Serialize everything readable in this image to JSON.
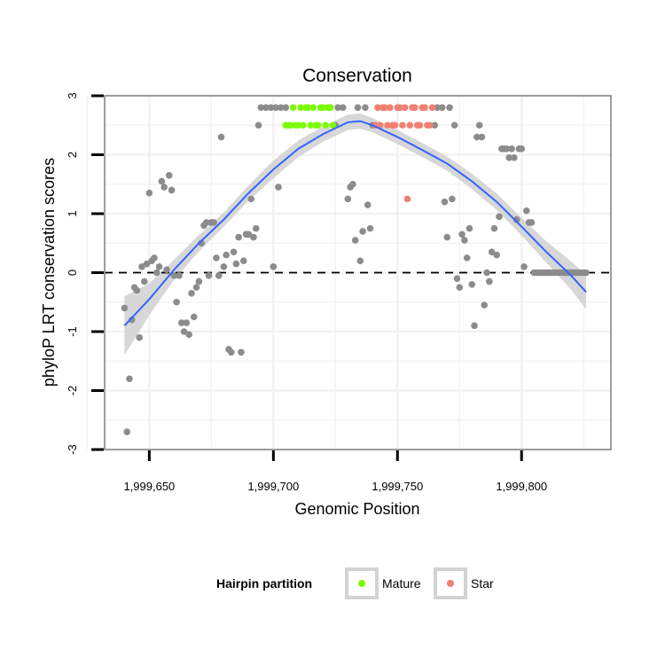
{
  "colors": {
    "background": "#ffffff",
    "panel_border": "#7f7f7f",
    "grid": "#f2f2f2",
    "other_points": "#8c8c8c",
    "mature": "#7cfc00",
    "star": "#f08070",
    "smooth_line": "#3366ff",
    "ci_band": "#d3d3d3",
    "zero_line": "#000000"
  },
  "chart_data": {
    "type": "scatter",
    "title": "Conservation",
    "xlabel": "Genomic Position",
    "ylabel": "phyloP LRT conservation scores",
    "xlim": [
      1999632,
      1999836
    ],
    "ylim": [
      -3,
      3
    ],
    "x_ticks": [
      1999650,
      1999700,
      1999750,
      1999800
    ],
    "x_tick_labels": [
      "1,999,650",
      "1,999,700",
      "1,999,750",
      "1,999,800"
    ],
    "y_ticks": [
      -3,
      -2,
      -1,
      0,
      1,
      2,
      3
    ],
    "y_tick_labels": [
      "-3",
      "-2",
      "-1",
      "0",
      "1",
      "2",
      "3"
    ],
    "grid": true,
    "reference_line": {
      "y": 0,
      "style": "dashed"
    },
    "legend": {
      "title": "Hairpin partition",
      "position": "bottom",
      "entries": [
        {
          "label": "Mature",
          "color": "#7cfc00"
        },
        {
          "label": "Star",
          "color": "#f08070"
        }
      ]
    },
    "series": [
      {
        "color": "#8c8c8c",
        "points": [
          [
            1999640,
            -0.6
          ],
          [
            1999641,
            -2.7
          ],
          [
            1999642,
            -1.8
          ],
          [
            1999643,
            -0.8
          ],
          [
            1999644,
            -0.25
          ],
          [
            1999645,
            -0.3
          ],
          [
            1999646,
            -1.1
          ],
          [
            1999647,
            0.1
          ],
          [
            1999648,
            -0.15
          ],
          [
            1999649,
            0.15
          ],
          [
            1999650,
            1.35
          ],
          [
            1999651,
            0.2
          ],
          [
            1999652,
            0.25
          ],
          [
            1999653,
            0.0
          ],
          [
            1999654,
            0.1
          ],
          [
            1999655,
            1.55
          ],
          [
            1999656,
            1.45
          ],
          [
            1999657,
            0.05
          ],
          [
            1999658,
            1.65
          ],
          [
            1999659,
            1.4
          ],
          [
            1999660,
            -0.05
          ],
          [
            1999661,
            -0.5
          ],
          [
            1999662,
            -0.05
          ],
          [
            1999663,
            -0.85
          ],
          [
            1999664,
            -1.0
          ],
          [
            1999665,
            -0.85
          ],
          [
            1999666,
            -1.05
          ],
          [
            1999667,
            -0.35
          ],
          [
            1999668,
            -0.75
          ],
          [
            1999669,
            -0.25
          ],
          [
            1999670,
            -0.15
          ],
          [
            1999671,
            0.5
          ],
          [
            1999672,
            0.8
          ],
          [
            1999673,
            0.85
          ],
          [
            1999674,
            -0.05
          ],
          [
            1999675,
            0.85
          ],
          [
            1999676,
            0.85
          ],
          [
            1999677,
            0.25
          ],
          [
            1999678,
            -0.05
          ],
          [
            1999679,
            2.3
          ],
          [
            1999680,
            0.1
          ],
          [
            1999681,
            0.3
          ],
          [
            1999682,
            -1.3
          ],
          [
            1999683,
            -1.35
          ],
          [
            1999684,
            0.35
          ],
          [
            1999685,
            0.15
          ],
          [
            1999686,
            0.6
          ],
          [
            1999687,
            -1.35
          ],
          [
            1999688,
            0.2
          ],
          [
            1999689,
            0.65
          ],
          [
            1999690,
            0.65
          ],
          [
            1999691,
            1.25
          ],
          [
            1999692,
            0.6
          ],
          [
            1999693,
            0.75
          ],
          [
            1999694,
            2.5
          ],
          [
            1999695,
            2.8
          ],
          [
            1999697,
            2.8
          ],
          [
            1999699,
            2.8
          ],
          [
            1999700,
            0.1
          ],
          [
            1999701,
            2.8
          ],
          [
            1999702,
            1.45
          ],
          [
            1999703,
            2.8
          ],
          [
            1999705,
            2.8
          ],
          [
            1999725,
            2.5
          ],
          [
            1999726,
            2.8
          ],
          [
            1999728,
            2.8
          ],
          [
            1999730,
            1.25
          ],
          [
            1999731,
            1.45
          ],
          [
            1999732,
            1.5
          ],
          [
            1999733,
            0.55
          ],
          [
            1999734,
            2.8
          ],
          [
            1999735,
            0.2
          ],
          [
            1999736,
            0.7
          ],
          [
            1999737,
            2.8
          ],
          [
            1999738,
            1.15
          ],
          [
            1999739,
            0.75
          ],
          [
            1999740,
            2.5
          ],
          [
            1999765,
            2.5
          ],
          [
            1999766,
            2.8
          ],
          [
            1999768,
            2.8
          ],
          [
            1999769,
            1.2
          ],
          [
            1999770,
            0.6
          ],
          [
            1999771,
            2.8
          ],
          [
            1999772,
            1.25
          ],
          [
            1999773,
            2.5
          ],
          [
            1999774,
            -0.1
          ],
          [
            1999775,
            -0.25
          ],
          [
            1999776,
            0.65
          ],
          [
            1999777,
            0.55
          ],
          [
            1999778,
            0.25
          ],
          [
            1999779,
            0.75
          ],
          [
            1999780,
            -0.2
          ],
          [
            1999781,
            -0.9
          ],
          [
            1999782,
            2.3
          ],
          [
            1999783,
            2.5
          ],
          [
            1999784,
            2.3
          ],
          [
            1999785,
            -0.55
          ],
          [
            1999786,
            0.0
          ],
          [
            1999787,
            -0.15
          ],
          [
            1999788,
            0.35
          ],
          [
            1999789,
            0.75
          ],
          [
            1999790,
            0.3
          ],
          [
            1999791,
            0.95
          ],
          [
            1999792,
            2.1
          ],
          [
            1999793,
            2.1
          ],
          [
            1999794,
            2.1
          ],
          [
            1999795,
            1.95
          ],
          [
            1999796,
            2.1
          ],
          [
            1999797,
            1.95
          ],
          [
            1999798,
            0.9
          ],
          [
            1999799,
            2.1
          ],
          [
            1999800,
            2.1
          ],
          [
            1999801,
            0.1
          ],
          [
            1999802,
            1.05
          ],
          [
            1999803,
            0.85
          ],
          [
            1999804,
            0.85
          ],
          [
            1999805,
            0.0
          ],
          [
            1999806,
            0.0
          ],
          [
            1999807,
            0.0
          ],
          [
            1999808,
            0.0
          ],
          [
            1999809,
            0.0
          ],
          [
            1999810,
            0.0
          ],
          [
            1999811,
            0.0
          ],
          [
            1999812,
            0.0
          ],
          [
            1999813,
            0.0
          ],
          [
            1999814,
            0.0
          ],
          [
            1999815,
            0.0
          ],
          [
            1999816,
            0.0
          ],
          [
            1999817,
            0.0
          ],
          [
            1999818,
            0.0
          ],
          [
            1999819,
            0.0
          ],
          [
            1999820,
            0.0
          ],
          [
            1999821,
            0.0
          ],
          [
            1999822,
            0.0
          ],
          [
            1999823,
            0.0
          ],
          [
            1999824,
            0.0
          ],
          [
            1999825,
            0.0
          ],
          [
            1999826,
            0.0
          ]
        ]
      },
      {
        "name": "Mature",
        "color": "#7cfc00",
        "points": [
          [
            1999705,
            2.5
          ],
          [
            1999706,
            2.5
          ],
          [
            1999707,
            2.5
          ],
          [
            1999708,
            2.8
          ],
          [
            1999709,
            2.5
          ],
          [
            1999710,
            2.5
          ],
          [
            1999711,
            2.8
          ],
          [
            1999712,
            2.5
          ],
          [
            1999713,
            2.8
          ],
          [
            1999714,
            2.8
          ],
          [
            1999715,
            2.5
          ],
          [
            1999716,
            2.8
          ],
          [
            1999717,
            2.5
          ],
          [
            1999718,
            2.5
          ],
          [
            1999719,
            2.8
          ],
          [
            1999720,
            2.8
          ],
          [
            1999721,
            2.5
          ],
          [
            1999722,
            2.8
          ],
          [
            1999723,
            2.8
          ],
          [
            1999724,
            2.5
          ]
        ]
      },
      {
        "name": "Star",
        "color": "#f08070",
        "points": [
          [
            1999741,
            2.5
          ],
          [
            1999742,
            2.8
          ],
          [
            1999743,
            2.5
          ],
          [
            1999744,
            2.8
          ],
          [
            1999745,
            2.8
          ],
          [
            1999746,
            2.5
          ],
          [
            1999747,
            2.8
          ],
          [
            1999748,
            2.5
          ],
          [
            1999749,
            2.5
          ],
          [
            1999750,
            2.8
          ],
          [
            1999751,
            2.8
          ],
          [
            1999752,
            2.5
          ],
          [
            1999753,
            2.8
          ],
          [
            1999754,
            1.25
          ],
          [
            1999755,
            2.5
          ],
          [
            1999756,
            2.8
          ],
          [
            1999757,
            2.8
          ],
          [
            1999758,
            2.5
          ],
          [
            1999759,
            2.5
          ],
          [
            1999760,
            2.8
          ],
          [
            1999761,
            2.8
          ],
          [
            1999762,
            2.5
          ],
          [
            1999763,
            2.5
          ],
          [
            1999764,
            2.8
          ]
        ]
      }
    ],
    "smooth_fit": {
      "color": "#3366ff",
      "x": [
        1999640,
        1999650,
        1999660,
        1999670,
        1999680,
        1999690,
        1999700,
        1999710,
        1999720,
        1999730,
        1999735,
        1999740,
        1999750,
        1999760,
        1999770,
        1999780,
        1999790,
        1999800,
        1999810,
        1999820,
        1999826
      ],
      "y": [
        -0.9,
        -0.45,
        0.05,
        0.5,
        0.9,
        1.35,
        1.75,
        2.1,
        2.35,
        2.55,
        2.57,
        2.5,
        2.3,
        2.08,
        1.85,
        1.55,
        1.2,
        0.78,
        0.35,
        -0.05,
        -0.33
      ],
      "lower": [
        -1.4,
        -0.72,
        -0.12,
        0.36,
        0.78,
        1.22,
        1.6,
        1.96,
        2.22,
        2.42,
        2.44,
        2.38,
        2.18,
        1.96,
        1.73,
        1.42,
        1.06,
        0.63,
        0.17,
        -0.29,
        -0.62
      ],
      "upper": [
        -0.4,
        -0.18,
        0.22,
        0.64,
        1.02,
        1.48,
        1.9,
        2.24,
        2.48,
        2.68,
        2.7,
        2.62,
        2.42,
        2.2,
        1.97,
        1.68,
        1.34,
        0.93,
        0.53,
        0.19,
        -0.04
      ]
    }
  }
}
